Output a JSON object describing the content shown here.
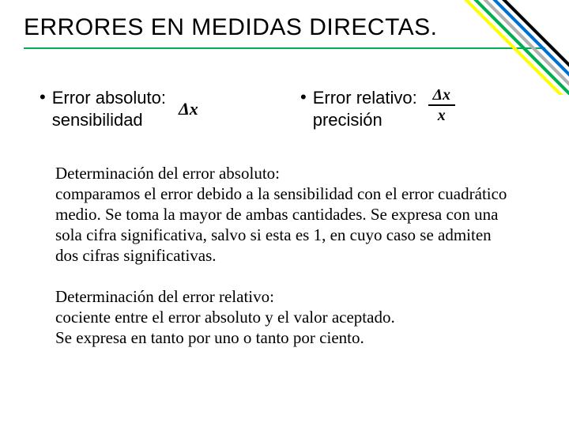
{
  "title": "ERRORES EN MEDIDAS DIRECTAS.",
  "bullets": {
    "left": {
      "line1": "Error absoluto:",
      "line2": "sensibilidad",
      "formula": "Δx"
    },
    "right": {
      "line1": "Error relativo:",
      "line2": "precisión",
      "formula_num": "Δx",
      "formula_den": "x"
    }
  },
  "para1": "Determinación del error absoluto:\ncomparamos el error debido a la sensibilidad con el error cuadrático medio. Se toma la mayor de ambas cantidades. Se expresa con una sola cifra significativa, salvo si esta es 1, en cuyo caso se admiten dos cifras significativas.",
  "para2": "Determinación del error relativo:\ncociente entre el error absoluto y el valor aceptado.\nSe expresa en tanto por uno o tanto por ciento.",
  "stripes": {
    "colors": [
      "#ffff00",
      "#00b050",
      "#b0b0b0",
      "#0070d0",
      "#000000"
    ],
    "stroke_width": 4,
    "gap": 12
  },
  "colors": {
    "rule": "#00b050",
    "text": "#000000",
    "background": "#ffffff"
  }
}
